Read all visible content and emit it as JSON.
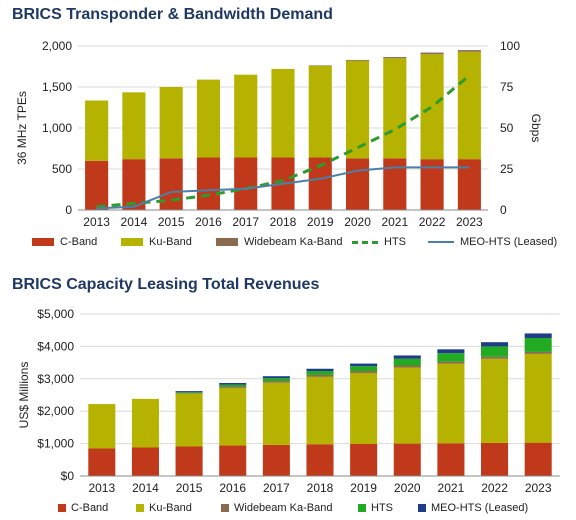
{
  "colors": {
    "c_band": "#c0391b",
    "ku_band": "#b5b300",
    "widebeam_ka": "#8b6a4f",
    "hts": "#22aa22",
    "meo_hts": "#1f3c88",
    "meo_line": "#4a7fa8",
    "hts_line": "#2e9b2e",
    "title": "#1f3864",
    "grid": "#d9d9d9",
    "axis": "#333333"
  },
  "chart_data": [
    {
      "type": "bar",
      "title": "BRICS  Transponder & Bandwidth Demand",
      "ylabel": "36 MHz TPEs",
      "y2label": "Gbps",
      "categories": [
        "2013",
        "2014",
        "2015",
        "2016",
        "2017",
        "2018",
        "2019",
        "2020",
        "2021",
        "2022",
        "2023"
      ],
      "ylim": [
        0,
        2000
      ],
      "yticks": [
        0,
        500,
        1000,
        1500,
        2000
      ],
      "ytick_labels": [
        "0",
        "500",
        "1,000",
        "1,500",
        "2,000"
      ],
      "y2lim": [
        0,
        100
      ],
      "y2ticks": [
        0,
        25,
        50,
        75,
        100
      ],
      "y2tick_labels": [
        "0",
        "25",
        "50",
        "75",
        "100"
      ],
      "stacked": true,
      "series": [
        {
          "name": "C-Band",
          "values": [
            600,
            620,
            630,
            640,
            640,
            640,
            640,
            630,
            630,
            620,
            620
          ]
        },
        {
          "name": "Ku-Band",
          "values": [
            735,
            815,
            870,
            950,
            1010,
            1080,
            1120,
            1190,
            1220,
            1280,
            1310
          ]
        },
        {
          "name": "Widebeam Ka-Band",
          "values": [
            0,
            0,
            0,
            0,
            0,
            0,
            5,
            10,
            15,
            20,
            20
          ]
        }
      ],
      "lines_secondary_axis": [
        {
          "name": "HTS",
          "style": "dashed",
          "values": [
            2,
            4,
            6,
            9,
            13,
            18,
            27,
            38,
            49,
            63,
            82
          ]
        },
        {
          "name": "MEO-HTS (Leased)",
          "style": "solid",
          "values": [
            1,
            2,
            11,
            12,
            13,
            16,
            19,
            24,
            26,
            26,
            26
          ]
        }
      ],
      "legend_position": "bottom"
    },
    {
      "type": "bar",
      "title": "BRICS  Capacity Leasing Total Revenues",
      "ylabel": "US$ Millions",
      "categories": [
        "2013",
        "2014",
        "2015",
        "2016",
        "2017",
        "2018",
        "2019",
        "2020",
        "2021",
        "2022",
        "2023"
      ],
      "ylim": [
        0,
        5000
      ],
      "yticks": [
        0,
        1000,
        2000,
        3000,
        4000,
        5000
      ],
      "ytick_labels": [
        "$0",
        "$1,000",
        "$2,000",
        "$3,000",
        "$4,000",
        "$5,000"
      ],
      "stacked": true,
      "series": [
        {
          "name": "C-Band",
          "values": [
            850,
            880,
            910,
            940,
            960,
            980,
            990,
            1000,
            1010,
            1020,
            1030
          ]
        },
        {
          "name": "Ku-Band",
          "values": [
            1370,
            1500,
            1630,
            1780,
            1920,
            2080,
            2190,
            2350,
            2460,
            2600,
            2740
          ]
        },
        {
          "name": "Widebeam Ka-Band",
          "values": [
            0,
            0,
            20,
            40,
            50,
            60,
            60,
            60,
            60,
            60,
            60
          ]
        },
        {
          "name": "HTS",
          "values": [
            0,
            0,
            30,
            60,
            90,
            120,
            150,
            210,
            260,
            320,
            430
          ]
        },
        {
          "name": "MEO-HTS (Leased)",
          "values": [
            0,
            0,
            30,
            50,
            60,
            70,
            80,
            100,
            120,
            130,
            140
          ]
        }
      ],
      "legend_position": "bottom"
    }
  ]
}
